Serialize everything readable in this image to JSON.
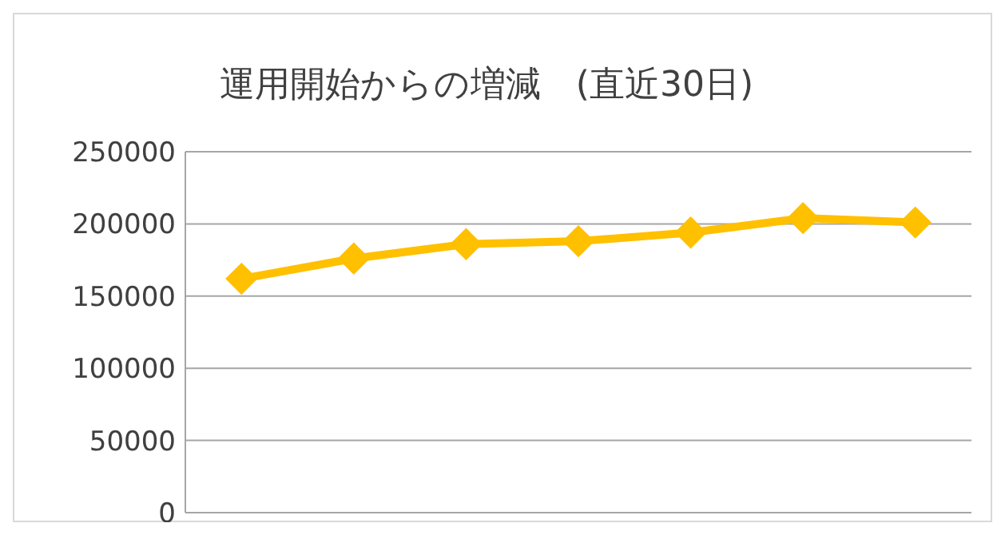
{
  "chart_data": {
    "type": "line",
    "title": "運用開始からの増減　(直近30日)",
    "categories": [
      null,
      null,
      null,
      null,
      null,
      null,
      null
    ],
    "series": [
      {
        "color": "#ffc000",
        "values": [
          162000,
          176000,
          186000,
          188000,
          194000,
          204000,
          201000
        ]
      }
    ],
    "ylim": [
      0,
      250000
    ],
    "yticks": [
      0,
      50000,
      100000,
      150000,
      200000,
      250000
    ],
    "grid": "y",
    "marker": "diamond",
    "line_style": "solid"
  }
}
